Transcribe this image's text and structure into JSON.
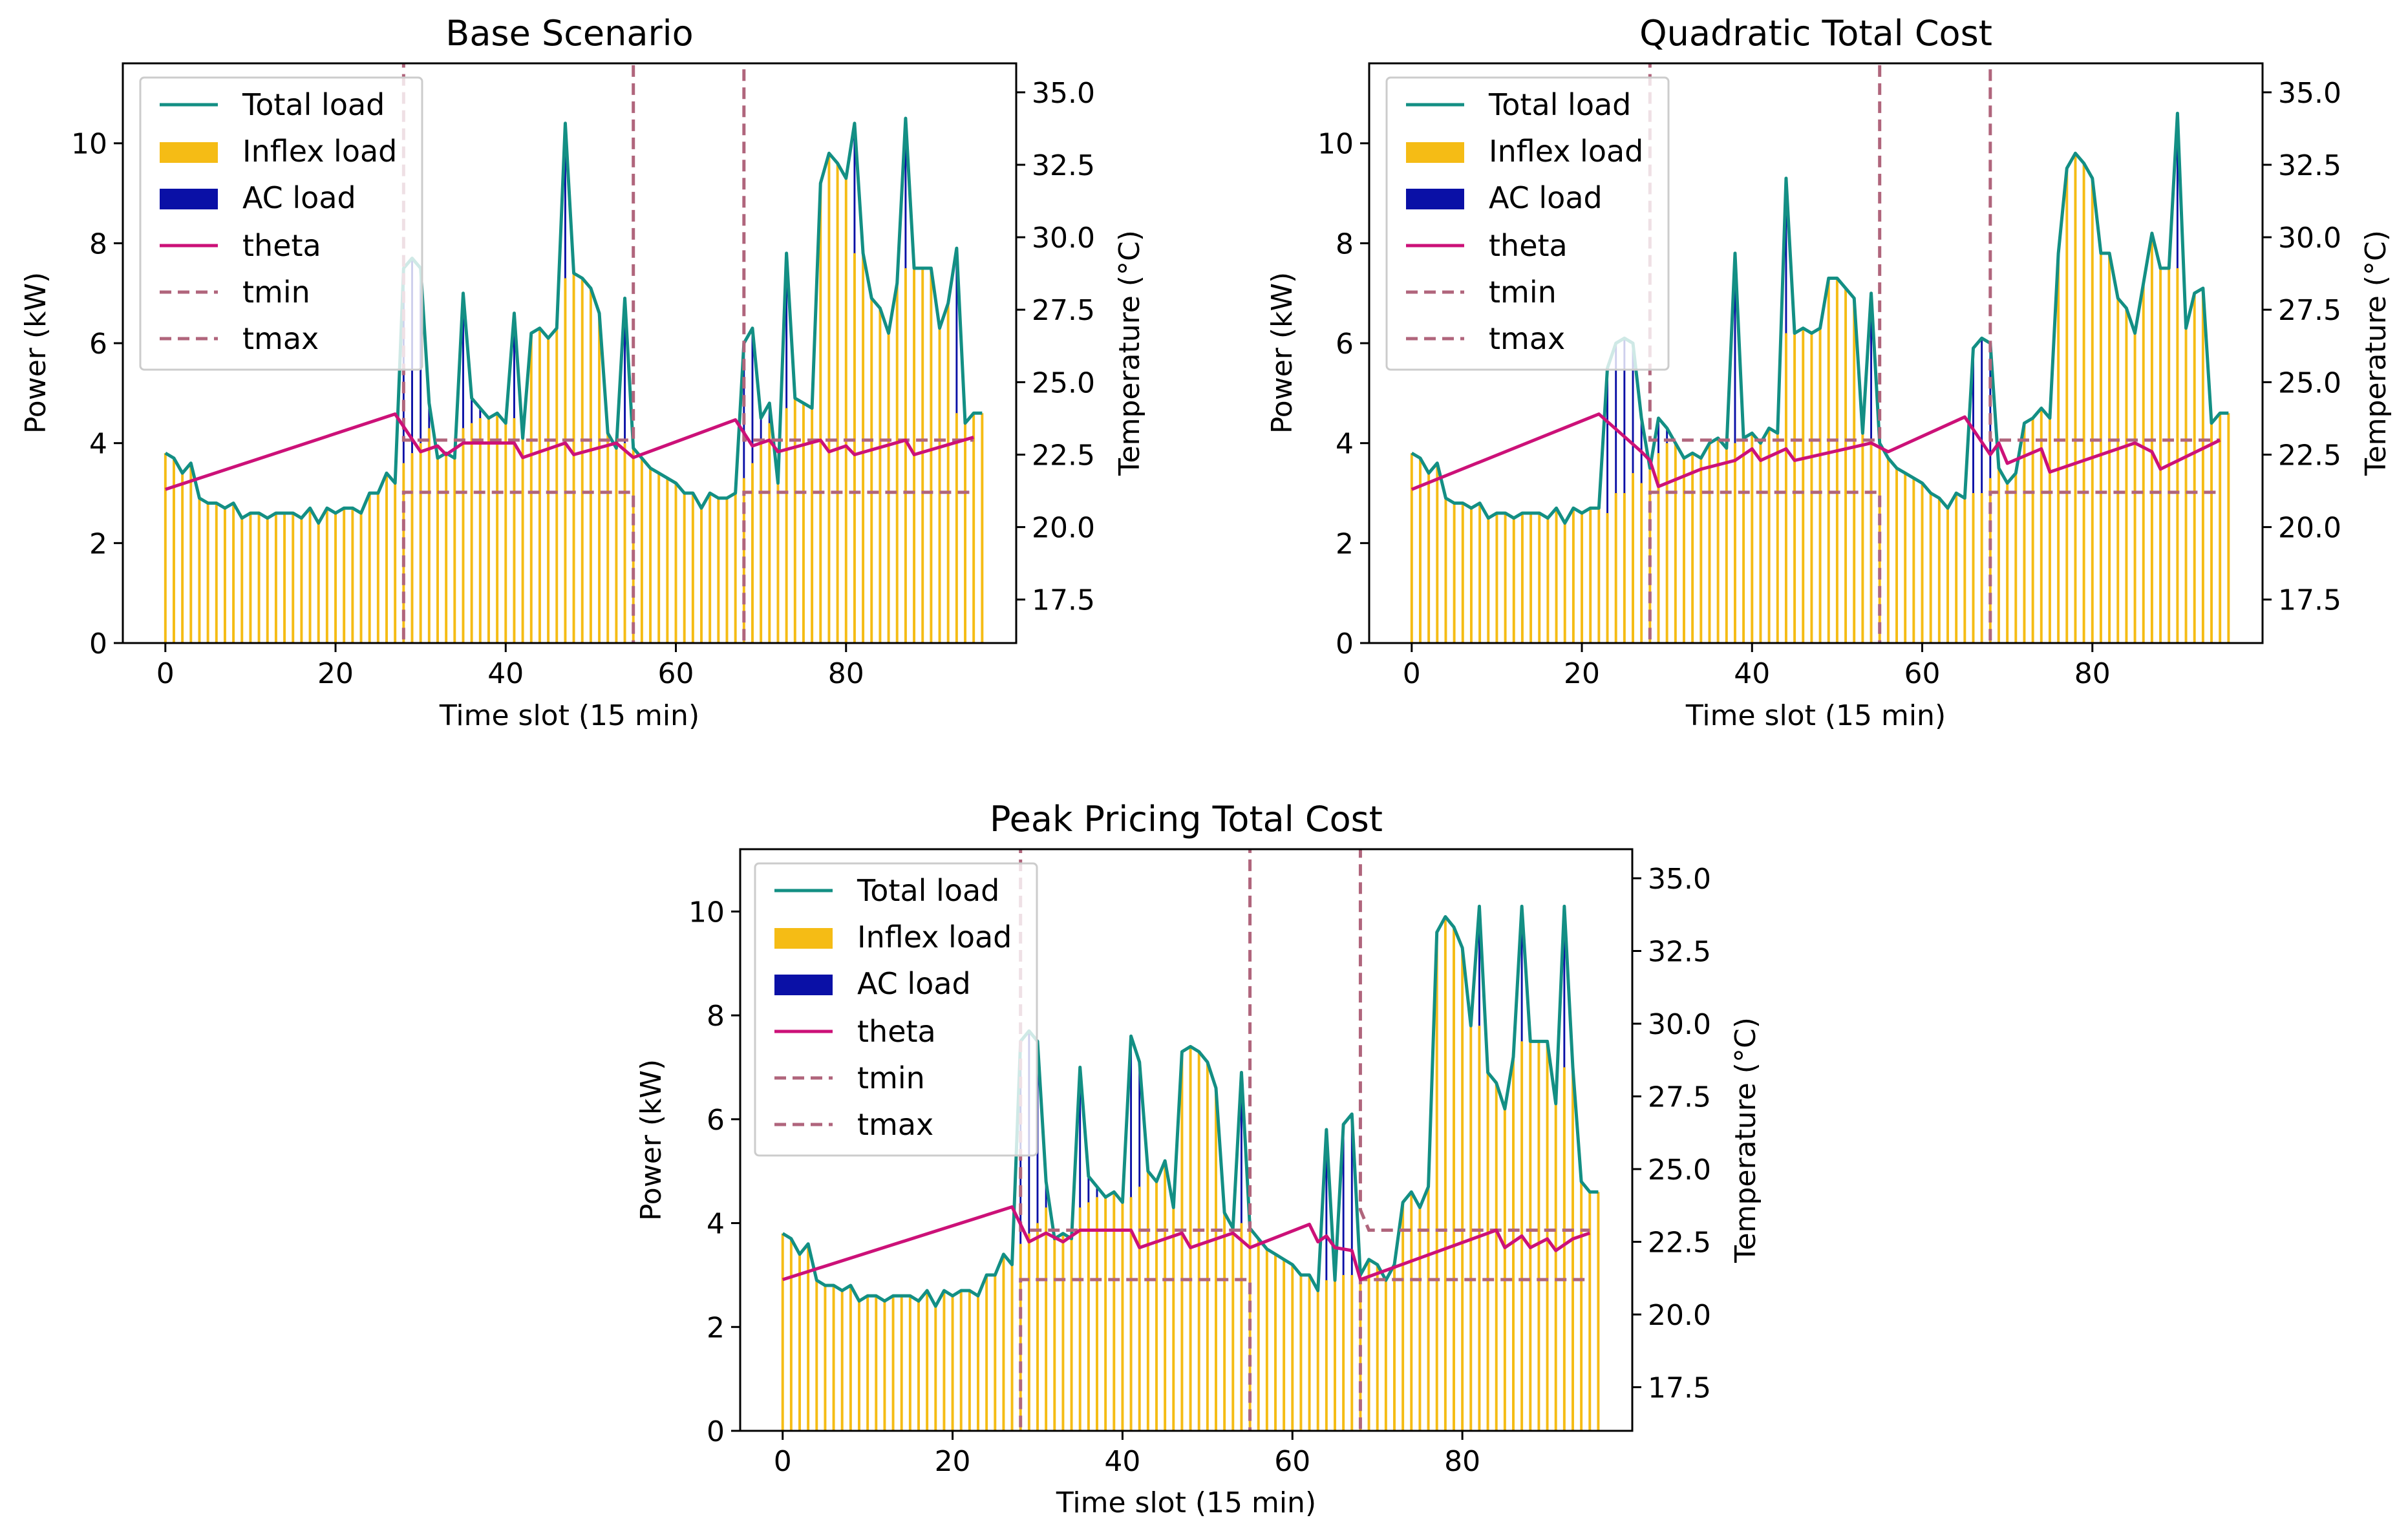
{
  "figure": {
    "legend_position": "top-left",
    "colors": {
      "total": "#138f84",
      "inflex": "#f5bc15",
      "ac": "#0a10a6",
      "theta": "#cc1178",
      "tbound": "#b0657c"
    }
  },
  "chart_data": [
    {
      "type": "bar+line",
      "title": "Base Scenario",
      "xlabel": "Time slot (15 min)",
      "ylabel": "Power (kW)",
      "y2label": "Temperature (°C)",
      "xlim": [
        -5,
        100
      ],
      "ylim": [
        0,
        11.6
      ],
      "y2lim": [
        16,
        36
      ],
      "xticks": [
        "0",
        "20",
        "40",
        "60",
        "80"
      ],
      "yticks": [
        "0",
        "2",
        "4",
        "6",
        "8",
        "10"
      ],
      "y2ticks": [
        "17.5",
        "20.0",
        "22.5",
        "25.0",
        "27.5",
        "30.0",
        "32.5",
        "35.0"
      ],
      "legend": [
        "Total load",
        "Inflex load",
        "AC load",
        "theta",
        "tmin",
        "tmax"
      ],
      "total_load": [
        3.8,
        3.7,
        3.4,
        3.6,
        2.9,
        2.8,
        2.8,
        2.7,
        2.8,
        2.5,
        2.6,
        2.6,
        2.5,
        2.6,
        2.6,
        2.6,
        2.5,
        2.7,
        2.4,
        2.7,
        2.6,
        2.7,
        2.7,
        2.6,
        3.0,
        3.0,
        3.4,
        3.2,
        7.5,
        7.7,
        7.5,
        4.8,
        3.7,
        3.8,
        3.7,
        7.0,
        4.9,
        4.7,
        4.5,
        4.6,
        4.4,
        6.6,
        4.1,
        6.2,
        6.3,
        6.1,
        6.3,
        10.4,
        7.4,
        7.3,
        7.1,
        6.6,
        4.2,
        3.9,
        6.9,
        3.9,
        3.7,
        3.5,
        3.4,
        3.3,
        3.2,
        3.0,
        3.0,
        2.7,
        3.0,
        2.9,
        2.9,
        3.0,
        6.0,
        6.3,
        4.5,
        4.8,
        3.2,
        7.8,
        4.9,
        4.8,
        4.7,
        9.2,
        9.8,
        9.6,
        9.3,
        10.4,
        7.8,
        6.9,
        6.7,
        6.2,
        7.2,
        10.5,
        7.5,
        7.5,
        7.5,
        6.3,
        6.8,
        7.9,
        4.4,
        4.6,
        4.6
      ],
      "inflex_load": [
        3.8,
        3.7,
        3.4,
        3.6,
        2.9,
        2.8,
        2.8,
        2.7,
        2.8,
        2.5,
        2.6,
        2.6,
        2.5,
        2.6,
        2.6,
        2.6,
        2.5,
        2.7,
        2.4,
        2.7,
        2.6,
        2.7,
        2.7,
        2.6,
        3.0,
        3.0,
        3.4,
        3.2,
        3.6,
        3.8,
        4.0,
        4.3,
        3.7,
        3.8,
        3.7,
        4.3,
        4.4,
        4.5,
        4.5,
        4.6,
        4.4,
        4.5,
        4.1,
        6.2,
        6.3,
        6.1,
        6.3,
        7.3,
        7.4,
        7.3,
        7.1,
        6.6,
        4.2,
        3.9,
        4.0,
        3.9,
        3.7,
        3.5,
        3.4,
        3.3,
        3.2,
        3.0,
        3.0,
        2.7,
        3.0,
        2.9,
        2.9,
        3.0,
        3.3,
        3.6,
        4.0,
        4.4,
        3.2,
        4.7,
        4.9,
        4.8,
        4.7,
        9.2,
        9.8,
        9.6,
        9.3,
        7.8,
        7.8,
        6.9,
        6.7,
        6.2,
        7.2,
        7.5,
        7.5,
        7.5,
        7.5,
        6.3,
        6.8,
        4.6,
        4.4,
        4.6,
        4.6
      ],
      "theta_points": [
        [
          0,
          21.3
        ],
        [
          27,
          23.9
        ],
        [
          30,
          22.6
        ],
        [
          32,
          22.8
        ],
        [
          33,
          22.5
        ],
        [
          35,
          22.9
        ],
        [
          41,
          22.9
        ],
        [
          42,
          22.4
        ],
        [
          47,
          22.9
        ],
        [
          48,
          22.5
        ],
        [
          53,
          22.9
        ],
        [
          55,
          22.4
        ],
        [
          67,
          23.7
        ],
        [
          69,
          22.8
        ],
        [
          71,
          23.0
        ],
        [
          72,
          22.6
        ],
        [
          77,
          23.0
        ],
        [
          78,
          22.6
        ],
        [
          80,
          22.8
        ],
        [
          81,
          22.5
        ],
        [
          87,
          23.0
        ],
        [
          88,
          22.5
        ],
        [
          95,
          23.1
        ]
      ],
      "tmin_points": [
        [
          28,
          15.5
        ],
        [
          28,
          21.2
        ],
        [
          55,
          21.2
        ],
        [
          55,
          15.5
        ],
        [
          68,
          15.5
        ],
        [
          68,
          21.2
        ],
        [
          95,
          21.2
        ]
      ],
      "tmax_points": [
        [
          28,
          40
        ],
        [
          28,
          23.0
        ],
        [
          55,
          23.0
        ],
        [
          55,
          40
        ],
        [
          68,
          40
        ],
        [
          68,
          23.0
        ],
        [
          95,
          23.0
        ]
      ]
    },
    {
      "type": "bar+line",
      "title": "Quadratic Total Cost",
      "xlabel": "Time slot (15 min)",
      "ylabel": "Power (kW)",
      "y2label": "Temperature (°C)",
      "xlim": [
        -5,
        100
      ],
      "ylim": [
        0,
        11.6
      ],
      "y2lim": [
        16,
        36
      ],
      "xticks": [
        "0",
        "20",
        "40",
        "60",
        "80"
      ],
      "yticks": [
        "0",
        "2",
        "4",
        "6",
        "8",
        "10"
      ],
      "y2ticks": [
        "17.5",
        "20.0",
        "22.5",
        "25.0",
        "27.5",
        "30.0",
        "32.5",
        "35.0"
      ],
      "legend": [
        "Total load",
        "Inflex load",
        "AC load",
        "theta",
        "tmin",
        "tmax"
      ],
      "total_load": [
        3.8,
        3.7,
        3.4,
        3.6,
        2.9,
        2.8,
        2.8,
        2.7,
        2.8,
        2.5,
        2.6,
        2.6,
        2.5,
        2.6,
        2.6,
        2.6,
        2.5,
        2.7,
        2.4,
        2.7,
        2.6,
        2.7,
        2.7,
        5.5,
        6.0,
        6.1,
        6.0,
        4.5,
        3.5,
        4.5,
        4.3,
        4.0,
        3.7,
        3.8,
        3.7,
        4.0,
        4.1,
        3.9,
        7.8,
        4.1,
        4.2,
        4.0,
        4.3,
        4.2,
        9.3,
        6.2,
        6.3,
        6.2,
        6.3,
        7.3,
        7.3,
        7.1,
        6.9,
        4.2,
        7.0,
        4.0,
        3.7,
        3.5,
        3.4,
        3.3,
        3.2,
        3.0,
        2.9,
        2.7,
        3.0,
        2.9,
        5.9,
        6.1,
        6.0,
        3.5,
        3.2,
        3.4,
        4.4,
        4.5,
        4.7,
        4.5,
        7.8,
        9.5,
        9.8,
        9.6,
        9.3,
        7.8,
        7.8,
        6.9,
        6.7,
        6.2,
        7.2,
        8.2,
        7.5,
        7.5,
        10.6,
        6.3,
        7.0,
        7.1,
        4.4,
        4.6,
        4.6
      ],
      "inflex_load": [
        3.8,
        3.7,
        3.4,
        3.6,
        2.9,
        2.8,
        2.8,
        2.7,
        2.8,
        2.5,
        2.6,
        2.6,
        2.5,
        2.6,
        2.6,
        2.6,
        2.5,
        2.7,
        2.4,
        2.7,
        2.6,
        2.7,
        2.7,
        2.6,
        3.0,
        3.0,
        3.4,
        3.2,
        3.5,
        3.8,
        4.0,
        4.0,
        3.7,
        3.8,
        3.7,
        4.0,
        4.1,
        3.9,
        4.0,
        4.1,
        4.2,
        4.0,
        4.3,
        4.2,
        6.2,
        6.2,
        6.3,
        6.2,
        6.3,
        7.3,
        7.3,
        7.1,
        6.9,
        4.2,
        4.0,
        4.0,
        3.7,
        3.5,
        3.4,
        3.3,
        3.2,
        3.0,
        2.9,
        2.7,
        3.0,
        2.9,
        3.0,
        3.0,
        3.3,
        3.5,
        3.2,
        3.4,
        4.4,
        4.5,
        4.7,
        4.5,
        7.8,
        9.5,
        9.8,
        9.6,
        9.3,
        7.8,
        7.8,
        6.9,
        6.7,
        6.2,
        7.2,
        8.2,
        7.5,
        7.5,
        7.5,
        6.3,
        7.0,
        7.1,
        4.4,
        4.6,
        4.6
      ],
      "theta_points": [
        [
          0,
          21.3
        ],
        [
          22,
          23.9
        ],
        [
          27,
          22.6
        ],
        [
          28,
          22.3
        ],
        [
          29,
          21.4
        ],
        [
          34,
          22.0
        ],
        [
          38,
          22.3
        ],
        [
          40,
          22.7
        ],
        [
          41,
          22.3
        ],
        [
          44,
          22.7
        ],
        [
          45,
          22.3
        ],
        [
          54,
          22.9
        ],
        [
          56,
          22.6
        ],
        [
          65,
          23.8
        ],
        [
          68,
          22.5
        ],
        [
          69,
          22.9
        ],
        [
          70,
          22.2
        ],
        [
          74,
          22.7
        ],
        [
          75,
          21.9
        ],
        [
          85,
          22.9
        ],
        [
          87,
          22.6
        ],
        [
          88,
          22.0
        ],
        [
          95,
          23.0
        ]
      ],
      "tmin_points": [
        [
          28,
          15.5
        ],
        [
          28,
          21.2
        ],
        [
          55,
          21.2
        ],
        [
          55,
          15.5
        ],
        [
          68,
          15.5
        ],
        [
          68,
          21.2
        ],
        [
          95,
          21.2
        ]
      ],
      "tmax_points": [
        [
          28,
          40
        ],
        [
          28,
          23.0
        ],
        [
          55,
          23.0
        ],
        [
          55,
          40
        ],
        [
          68,
          40
        ],
        [
          68,
          23.0
        ],
        [
          95,
          23.0
        ]
      ]
    },
    {
      "type": "bar+line",
      "title": "Peak Pricing Total Cost",
      "xlabel": "Time slot (15 min)",
      "ylabel": "Power (kW)",
      "y2label": "Temperature (°C)",
      "xlim": [
        -5,
        100
      ],
      "ylim": [
        0,
        11.2
      ],
      "y2lim": [
        16,
        36
      ],
      "xticks": [
        "0",
        "20",
        "40",
        "60",
        "80"
      ],
      "yticks": [
        "0",
        "2",
        "4",
        "6",
        "8",
        "10"
      ],
      "y2ticks": [
        "17.5",
        "20.0",
        "22.5",
        "25.0",
        "27.5",
        "30.0",
        "32.5",
        "35.0"
      ],
      "legend": [
        "Total load",
        "Inflex load",
        "AC load",
        "theta",
        "tmin",
        "tmax"
      ],
      "total_load": [
        3.8,
        3.7,
        3.4,
        3.6,
        2.9,
        2.8,
        2.8,
        2.7,
        2.8,
        2.5,
        2.6,
        2.6,
        2.5,
        2.6,
        2.6,
        2.6,
        2.5,
        2.7,
        2.4,
        2.7,
        2.6,
        2.7,
        2.7,
        2.6,
        3.0,
        3.0,
        3.4,
        3.2,
        7.5,
        7.7,
        7.5,
        4.8,
        3.7,
        3.8,
        3.7,
        7.0,
        4.9,
        4.7,
        4.5,
        4.6,
        4.4,
        7.6,
        7.1,
        5.0,
        4.8,
        5.2,
        4.3,
        7.3,
        7.4,
        7.3,
        7.1,
        6.6,
        4.2,
        3.9,
        6.9,
        3.9,
        3.7,
        3.5,
        3.4,
        3.3,
        3.2,
        3.0,
        3.0,
        2.7,
        5.8,
        2.9,
        5.9,
        6.1,
        3.0,
        3.3,
        3.2,
        2.9,
        3.2,
        4.4,
        4.6,
        4.3,
        4.7,
        9.6,
        9.9,
        9.7,
        9.3,
        7.8,
        10.1,
        6.9,
        6.7,
        6.2,
        7.2,
        10.1,
        7.5,
        7.5,
        7.5,
        6.3,
        10.1,
        7.0,
        4.8,
        4.6,
        4.6
      ],
      "inflex_load": [
        3.8,
        3.7,
        3.4,
        3.6,
        2.9,
        2.8,
        2.8,
        2.7,
        2.8,
        2.5,
        2.6,
        2.6,
        2.5,
        2.6,
        2.6,
        2.6,
        2.5,
        2.7,
        2.4,
        2.7,
        2.6,
        2.7,
        2.7,
        2.6,
        3.0,
        3.0,
        3.4,
        3.2,
        3.6,
        3.8,
        4.0,
        4.3,
        3.7,
        3.8,
        3.7,
        4.3,
        4.4,
        4.5,
        4.5,
        4.6,
        4.4,
        4.5,
        4.7,
        5.0,
        4.8,
        5.2,
        4.3,
        7.3,
        7.4,
        7.3,
        7.1,
        6.6,
        4.2,
        3.9,
        4.0,
        3.9,
        3.7,
        3.5,
        3.4,
        3.3,
        3.2,
        3.0,
        3.0,
        2.7,
        2.9,
        2.9,
        3.0,
        3.0,
        3.0,
        3.3,
        3.2,
        2.9,
        3.2,
        4.4,
        4.6,
        4.3,
        4.7,
        9.6,
        9.9,
        9.7,
        9.3,
        7.8,
        7.8,
        6.9,
        6.7,
        6.2,
        7.2,
        7.5,
        7.5,
        7.5,
        7.5,
        6.3,
        7.0,
        7.0,
        4.8,
        4.6,
        4.6
      ],
      "theta_points": [
        [
          0,
          21.2
        ],
        [
          27,
          23.7
        ],
        [
          29,
          22.5
        ],
        [
          31,
          22.8
        ],
        [
          33,
          22.5
        ],
        [
          35,
          22.9
        ],
        [
          41,
          22.9
        ],
        [
          42,
          22.3
        ],
        [
          47,
          22.8
        ],
        [
          48,
          22.3
        ],
        [
          53,
          22.8
        ],
        [
          55,
          22.3
        ],
        [
          62,
          23.1
        ],
        [
          63,
          22.5
        ],
        [
          64,
          22.7
        ],
        [
          65,
          22.3
        ],
        [
          67,
          22.2
        ],
        [
          68,
          21.2
        ],
        [
          84,
          22.9
        ],
        [
          85,
          22.3
        ],
        [
          87,
          22.7
        ],
        [
          88,
          22.3
        ],
        [
          90,
          22.6
        ],
        [
          91,
          22.2
        ],
        [
          93,
          22.6
        ],
        [
          95,
          22.8
        ]
      ],
      "tmin_points": [
        [
          28,
          15.5
        ],
        [
          28,
          21.2
        ],
        [
          55,
          21.2
        ],
        [
          55,
          15.5
        ],
        [
          68,
          15.5
        ],
        [
          68,
          21.2
        ],
        [
          95,
          21.2
        ]
      ],
      "tmax_points": [
        [
          28,
          40
        ],
        [
          28,
          22.9
        ],
        [
          55,
          22.9
        ],
        [
          55,
          40
        ],
        [
          68,
          40
        ],
        [
          68,
          23.6
        ],
        [
          69,
          22.9
        ],
        [
          95,
          22.9
        ]
      ]
    }
  ]
}
